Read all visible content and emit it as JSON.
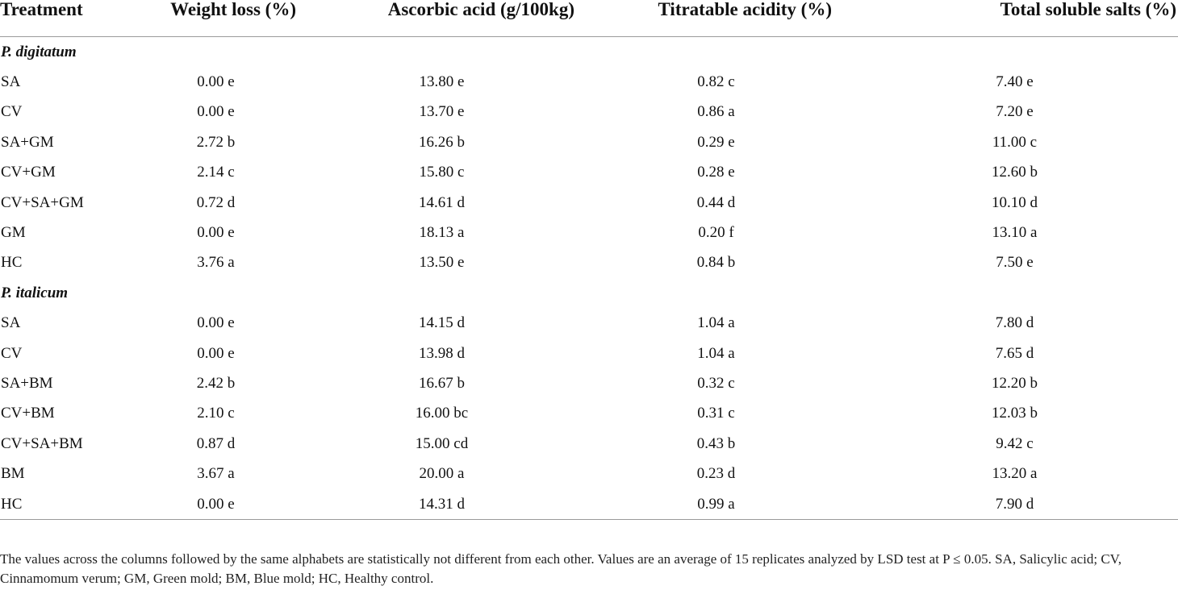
{
  "headers": [
    "Treatment",
    "Weight loss (%)",
    "Ascorbic acid (g/100kg)",
    "Titratable acidity (%)",
    "Total soluble salts (%)"
  ],
  "groups": [
    {
      "name": "P. digitatum",
      "rows": [
        [
          "SA",
          "0.00 e",
          "13.80 e",
          "0.82 c",
          "7.40 e"
        ],
        [
          "CV",
          "0.00 e",
          "13.70 e",
          "0.86 a",
          "7.20 e"
        ],
        [
          "SA+GM",
          "2.72 b",
          "16.26 b",
          "0.29 e",
          "11.00 c"
        ],
        [
          "CV+GM",
          "2.14 c",
          "15.80 c",
          "0.28 e",
          "12.60 b"
        ],
        [
          "CV+SA+GM",
          "0.72 d",
          "14.61 d",
          "0.44 d",
          "10.10 d"
        ],
        [
          "GM",
          "0.00 e",
          "18.13 a",
          "0.20 f",
          "13.10 a"
        ],
        [
          "HC",
          "3.76 a",
          "13.50 e",
          "0.84 b",
          "7.50 e"
        ]
      ]
    },
    {
      "name": "P. italicum",
      "rows": [
        [
          "SA",
          "0.00 e",
          "14.15 d",
          "1.04 a",
          "7.80 d"
        ],
        [
          "CV",
          "0.00 e",
          "13.98 d",
          "1.04 a",
          "7.65 d"
        ],
        [
          "SA+BM",
          "2.42 b",
          "16.67 b",
          "0.32 c",
          "12.20 b"
        ],
        [
          "CV+BM",
          "2.10 c",
          "16.00 bc",
          "0.31 c",
          "12.03 b"
        ],
        [
          "CV+SA+BM",
          "0.87 d",
          "15.00 cd",
          "0.43 b",
          "9.42 c"
        ],
        [
          "BM",
          "3.67 a",
          "20.00 a",
          "0.23 d",
          "13.20 a"
        ],
        [
          "HC",
          "0.00 e",
          "14.31 d",
          "0.99 a",
          "7.90 d"
        ]
      ]
    }
  ],
  "footnote": "The values across the columns followed by the same alphabets are statistically not different from each other. Values are an average of 15 replicates analyzed by LSD test at P ≤ 0.05. SA, Salicylic acid; CV, Cinnamomum verum; GM, Green mold; BM, Blue mold; HC, Healthy control."
}
